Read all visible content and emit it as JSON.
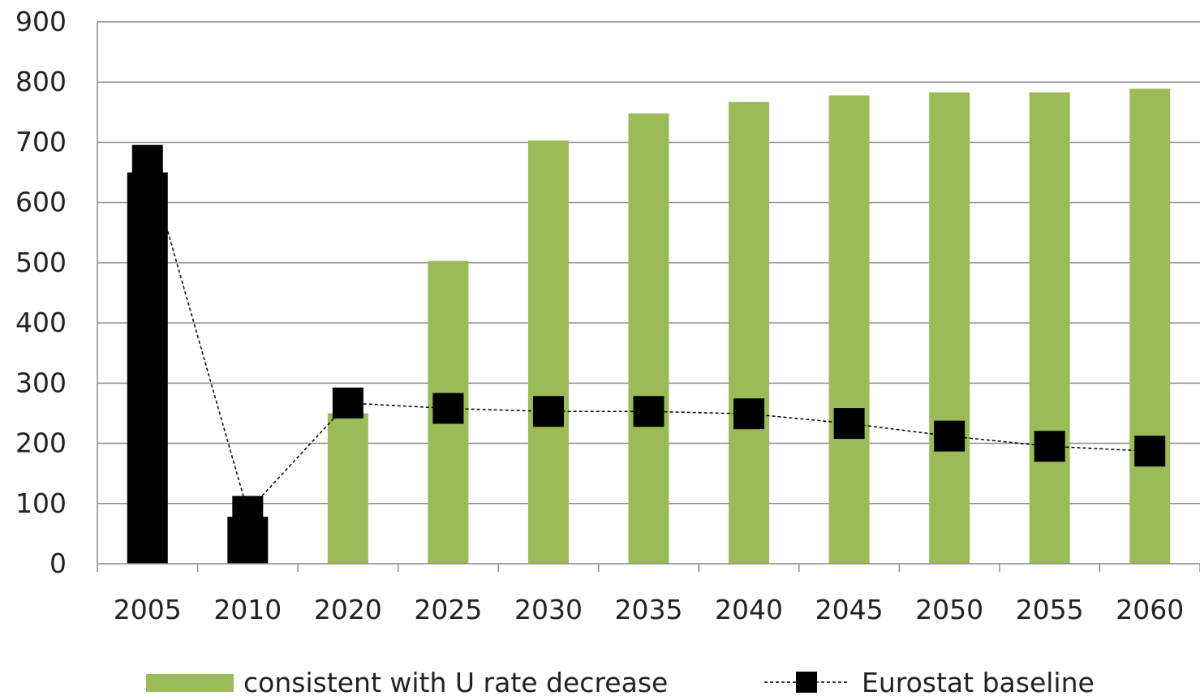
{
  "chart_data": {
    "type": "bar",
    "categories": [
      "2005",
      "2010",
      "2020",
      "2025",
      "2030",
      "2035",
      "2040",
      "2045",
      "2050",
      "2055",
      "2060"
    ],
    "series": [
      {
        "name": "consistent with U rate decrease",
        "kind": "bar",
        "values": [
          650,
          78,
          250,
          503,
          703,
          748,
          767,
          778,
          783,
          783,
          789
        ],
        "colors": [
          "#000000",
          "#000000",
          "#9bbb59",
          "#9bbb59",
          "#9bbb59",
          "#9bbb59",
          "#9bbb59",
          "#9bbb59",
          "#9bbb59",
          "#9bbb59",
          "#9bbb59"
        ]
      },
      {
        "name": "Eurostat baseline",
        "kind": "line",
        "line_style": "dashed",
        "marker": "square",
        "color": "#000000",
        "values": [
          670,
          87,
          267,
          258,
          253,
          253,
          249,
          233,
          212,
          195,
          187
        ]
      }
    ],
    "title": "",
    "xlabel": "",
    "ylabel": "",
    "ylim": [
      0,
      900
    ],
    "yticks": [
      "0",
      "100",
      "200",
      "300",
      "400",
      "500",
      "600",
      "700",
      "800",
      "900"
    ],
    "grid": true,
    "legend_position": "bottom",
    "legend": [
      {
        "label": "consistent with U rate decrease",
        "symbol": "bar"
      },
      {
        "label": "Eurostat baseline",
        "symbol": "dashed-line-square"
      }
    ]
  }
}
